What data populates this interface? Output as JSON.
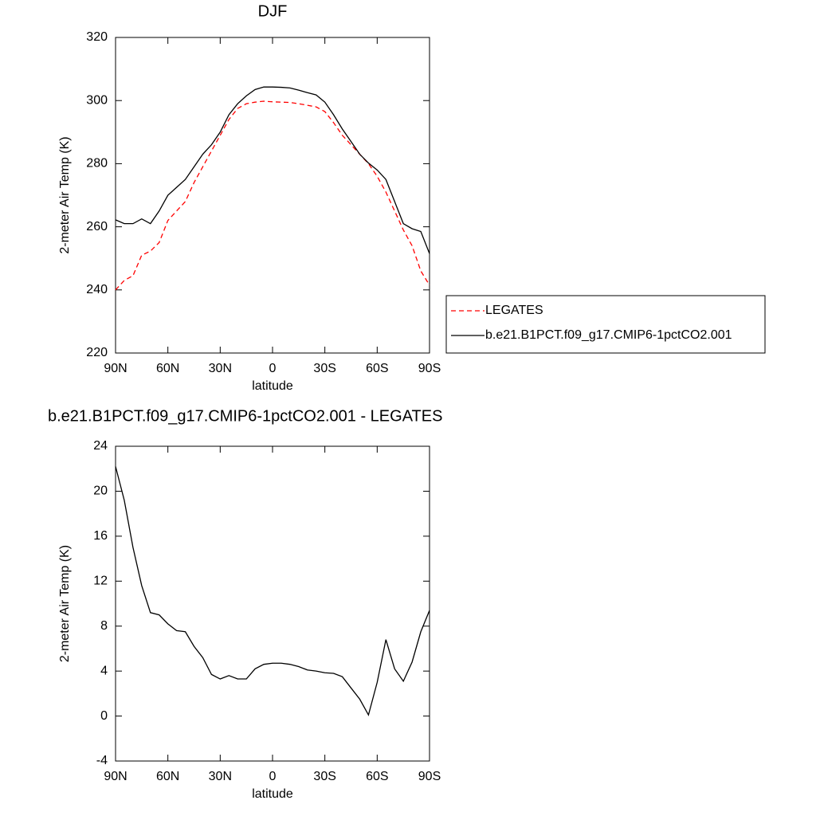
{
  "chart_data": [
    {
      "type": "line",
      "title": "DJF",
      "xlabel": "latitude",
      "ylabel": "2-meter Air Temp (K)",
      "x": [
        90,
        85,
        80,
        75,
        70,
        65,
        60,
        55,
        50,
        45,
        40,
        35,
        30,
        25,
        20,
        15,
        10,
        5,
        0,
        -5,
        -10,
        -15,
        -20,
        -25,
        -30,
        -35,
        -40,
        -45,
        -50,
        -55,
        -60,
        -65,
        -70,
        -75,
        -80,
        -85,
        -90
      ],
      "series": [
        {
          "name": "LEGATES",
          "color": "#ff0000",
          "linestyle": "dashed",
          "values": [
            240,
            243,
            244.5,
            251,
            252.3,
            255,
            262,
            265,
            268,
            274,
            279,
            284,
            289,
            294,
            297.5,
            299,
            299.5,
            299.8,
            299.6,
            299.5,
            299.4,
            299,
            298.5,
            298,
            296.5,
            293,
            289,
            286,
            283,
            280,
            276,
            271,
            265,
            259,
            254,
            246,
            241.5
          ]
        },
        {
          "name": "b.e21.B1PCT.f09_g17.CMIP6-1pctCO2.001",
          "color": "#000000",
          "linestyle": "solid",
          "values": [
            262.2,
            261,
            261,
            262.5,
            261,
            265,
            270,
            272.5,
            275,
            279,
            283,
            286,
            290,
            295.5,
            299,
            301.5,
            303.5,
            304.3,
            304.3,
            304.2,
            304,
            303.3,
            302.5,
            301.8,
            299.5,
            295.5,
            291,
            287,
            283,
            280.2,
            278,
            275,
            268,
            261,
            259.4,
            258.5,
            251.5
          ]
        }
      ],
      "xlim": [
        90,
        -90
      ],
      "xticks": [
        {
          "value": 90,
          "label": "90N"
        },
        {
          "value": 60,
          "label": "60N"
        },
        {
          "value": 30,
          "label": "30N"
        },
        0,
        {
          "value": -30,
          "label": "30S"
        },
        {
          "value": -60,
          "label": "60S"
        },
        {
          "value": -90,
          "label": "90S"
        }
      ],
      "ylim": [
        220,
        320
      ],
      "yticks": [
        220,
        240,
        260,
        280,
        300,
        320
      ],
      "legend": "right"
    },
    {
      "type": "line",
      "title": "b.e21.B1PCT.f09_g17.CMIP6-1pctCO2.001 - LEGATES",
      "xlabel": "latitude",
      "ylabel": "2-meter Air Temp (K)",
      "x": [
        90,
        85,
        80,
        75,
        70,
        65,
        60,
        55,
        50,
        45,
        40,
        35,
        30,
        25,
        20,
        15,
        10,
        5,
        0,
        -5,
        -10,
        -15,
        -20,
        -25,
        -30,
        -35,
        -40,
        -45,
        -50,
        -55,
        -60,
        -65,
        -70,
        -75,
        -80,
        -85,
        -90
      ],
      "series": [
        {
          "color": "#000000",
          "linestyle": "solid",
          "values": [
            22.2,
            19.2,
            15,
            11.6,
            9.2,
            9,
            8.2,
            7.6,
            7.5,
            6.2,
            5.2,
            3.7,
            3.3,
            3.6,
            3.3,
            3.3,
            4.2,
            4.6,
            4.7,
            4.7,
            4.6,
            4.4,
            4.1,
            4,
            3.85,
            3.8,
            3.5,
            2.5,
            1.5,
            0.1,
            3,
            6.8,
            4.2,
            3.1,
            4.8,
            7.5,
            9.4
          ]
        }
      ],
      "xlim": [
        90,
        -90
      ],
      "xticks": [
        {
          "value": 90,
          "label": "90N"
        },
        {
          "value": 60,
          "label": "60N"
        },
        {
          "value": 30,
          "label": "30N"
        },
        0,
        {
          "value": -30,
          "label": "30S"
        },
        {
          "value": -60,
          "label": "60S"
        },
        {
          "value": -90,
          "label": "90S"
        }
      ],
      "ylim": [
        -4,
        24
      ],
      "yticks": [
        -4,
        0,
        4,
        8,
        12,
        16,
        20,
        24
      ]
    }
  ]
}
